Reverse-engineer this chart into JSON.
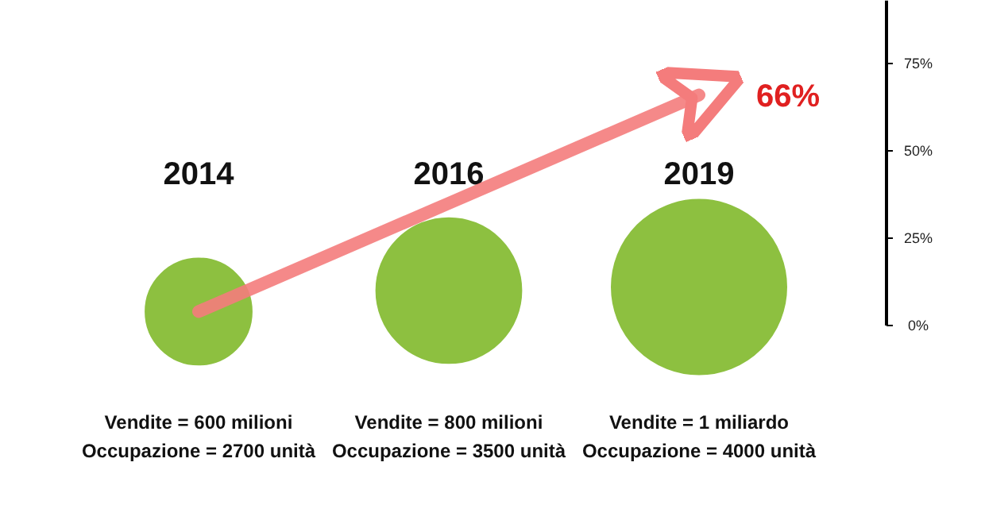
{
  "chart_data": {
    "type": "bubble",
    "categories": [
      "2014",
      "2016",
      "2019"
    ],
    "ylim": [
      0,
      93
    ],
    "yticks": [
      {
        "value": 0,
        "label": "0%"
      },
      {
        "value": 25,
        "label": "25%"
      },
      {
        "value": 50,
        "label": "50%"
      },
      {
        "value": 75,
        "label": "75%"
      }
    ],
    "series": [
      {
        "color": "#8dc040",
        "values": [
          4,
          10,
          11
        ],
        "sizes": [
          0.37,
          0.69,
          1
        ]
      },
      {
        "type": "line",
        "color": "#f47c7c",
        "values": [
          4,
          35,
          66
        ],
        "marker": "none",
        "line_style": "solid"
      }
    ],
    "annotations": [
      "Vendite = 600 milioni",
      "Occupazione = 2700 unità",
      "Vendite = 800 milioni",
      "Occupazione = 3500 unità",
      "Vendite = 1 miliardo",
      "Occupazione = 4000 unità",
      "66%"
    ],
    "grid": false
  }
}
